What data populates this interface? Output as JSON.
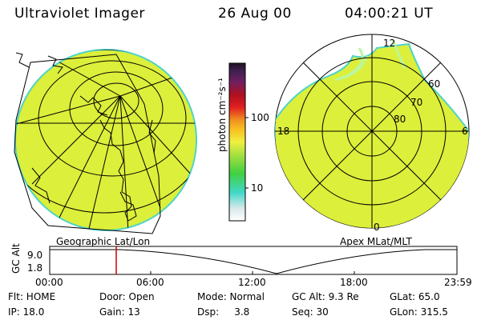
{
  "header": {
    "title": "Ultraviolet Imager",
    "date": "26 Aug 00",
    "time": "04:00:21 UT"
  },
  "left_panel": {
    "label": "Geographic Lat/Lon"
  },
  "right_panel": {
    "label": "Apex MLat/MLT",
    "mlt_labels": {
      "top": "12",
      "left": "18",
      "right": "6",
      "bottom": "0"
    },
    "lat_labels": [
      "60",
      "70",
      "80"
    ]
  },
  "colorbar": {
    "unit_label": "photon cm⁻²s⁻¹",
    "ticks": [
      "100",
      "10"
    ],
    "scale": "log"
  },
  "timeline": {
    "axis_label": "GC Alt",
    "y_ticks": [
      "9.0",
      "1.8"
    ],
    "x_ticks": [
      "00:00",
      "06:00",
      "12:00",
      "18:00",
      "23:59"
    ],
    "marker_time": "04:00",
    "marker_color": "#cc0000"
  },
  "info": {
    "flt": "Flt: HOME",
    "door": "Door: Open",
    "mode": "Mode: Normal",
    "gc_alt": "GC Alt: 9.3 Re",
    "glat": "GLat:  65.0",
    "ip": "IP: 18.0",
    "gain": "Gain: 13",
    "dsp": "Dsp:     3.8",
    "seq": "Seq: 30",
    "glon": "GLon: 315.5"
  },
  "colors": {
    "image_fill": "#dcef3a",
    "image_edge": "#4fd3c8",
    "aurora": "#baf7a0"
  }
}
